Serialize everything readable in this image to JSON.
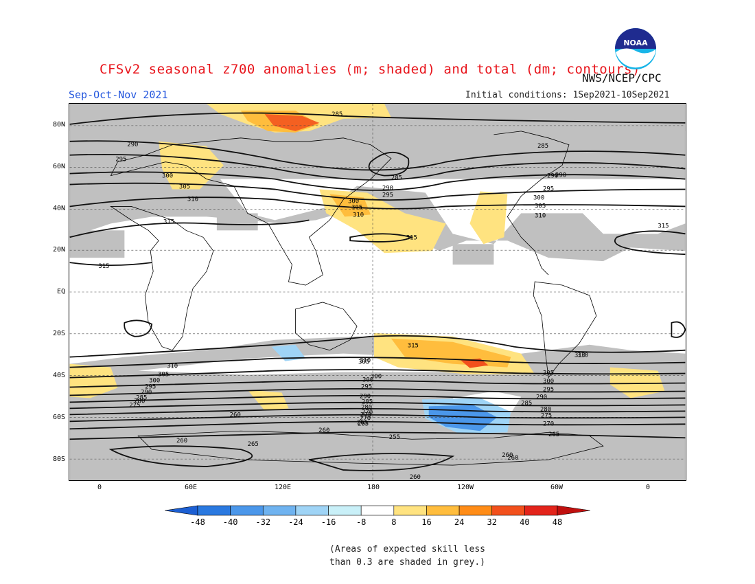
{
  "header": {
    "title": "CFSv2 seasonal z700 anomalies (m; shaded) and total (dm; contours)",
    "agency": "NWS/NCEP/CPC",
    "season": "Sep-Oct-Nov 2021",
    "initial_conditions": "Initial conditions: 1Sep2021-10Sep2021",
    "logo_text": "NOAA"
  },
  "map": {
    "lat_labels": [
      "80N",
      "60N",
      "40N",
      "20N",
      "EQ",
      "20S",
      "40S",
      "60S",
      "80S"
    ],
    "lon_labels": [
      "0",
      "60E",
      "120E",
      "180",
      "120W",
      "60W",
      "0"
    ],
    "contour_labels": [
      "285",
      "290",
      "295",
      "300",
      "305",
      "310",
      "315",
      "315",
      "315",
      "290",
      "285",
      "290",
      "295",
      "300",
      "305",
      "310",
      "315",
      "285",
      "290",
      "295",
      "300",
      "305",
      "310",
      "315",
      "310",
      "310",
      "310",
      "305",
      "300",
      "295",
      "290",
      "285",
      "280",
      "275",
      "270",
      "265",
      "260",
      "260",
      "260",
      "255",
      "260",
      "265",
      "260",
      "300",
      "305",
      "290",
      "295",
      "300",
      "285",
      "280",
      "275",
      "270",
      "265",
      "310",
      "305",
      "300",
      "295",
      "290",
      "285",
      "280",
      "275",
      "270",
      "265",
      "260"
    ],
    "colors": {
      "skill_grey": "#c0c0c0",
      "land_outline": "#000000",
      "contour": "#111111"
    }
  },
  "colorbar": {
    "ticks": [
      "-48",
      "-40",
      "-32",
      "-24",
      "-16",
      "-8",
      "8",
      "16",
      "24",
      "32",
      "40",
      "48"
    ],
    "colors": [
      "#1c5fd3",
      "#2a79e0",
      "#4b97ea",
      "#6fb3f0",
      "#9fd4f6",
      "#c9f0f8",
      "#ffffff",
      "#ffe380",
      "#ffbd3d",
      "#ff8c17",
      "#f2501c",
      "#e3241b",
      "#c0100f"
    ]
  },
  "footnote": {
    "line1": "(Areas of expected skill less",
    "line2": "than 0.3 are shaded in grey.)"
  }
}
